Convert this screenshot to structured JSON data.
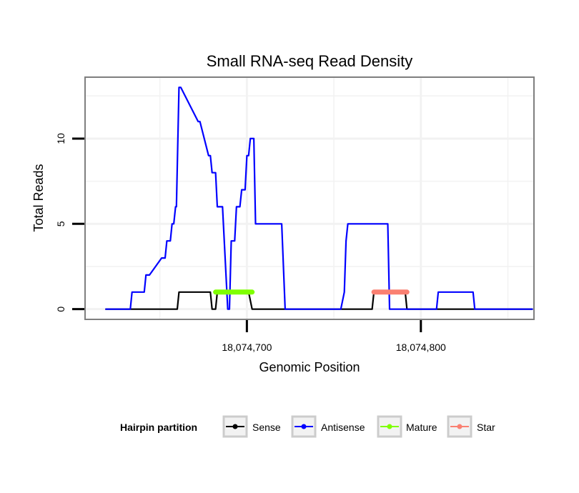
{
  "chart_data": {
    "type": "line",
    "title": "Small RNA-seq Read Density",
    "xlabel": "Genomic Position",
    "ylabel": "Total Reads",
    "xlim": [
      18074607,
      18074865
    ],
    "ylim": [
      -0.6,
      13.6
    ],
    "x_ticks": [
      {
        "value": 18074700,
        "label": "18,074,700"
      },
      {
        "value": 18074800,
        "label": "18,074,800"
      }
    ],
    "y_ticks": [
      {
        "value": 0,
        "label": "0"
      },
      {
        "value": 5,
        "label": "5"
      },
      {
        "value": 10,
        "label": "10"
      }
    ],
    "x_minor_grid": [
      18074650,
      18074750,
      18074850
    ],
    "y_minor_grid": [
      2.5,
      7.5,
      12.5
    ],
    "legend": {
      "title": "Hairpin partition",
      "position": "bottom",
      "entries": [
        {
          "label": "Sense",
          "color": "#000000"
        },
        {
          "label": "Antisense",
          "color": "#0000ff"
        },
        {
          "label": "Mature",
          "color": "#7fff00"
        },
        {
          "label": "Star",
          "color": "#fa8072"
        }
      ]
    },
    "series": [
      {
        "name": "Sense",
        "color": "#000000",
        "x": [
          18074619,
          18074660,
          18074661,
          18074679,
          18074680,
          18074682,
          18074683,
          18074701,
          18074703,
          18074754,
          18074772,
          18074773,
          18074791,
          18074792,
          18074864
        ],
        "y": [
          0,
          0,
          1,
          1,
          0,
          0,
          1,
          1,
          0,
          0,
          0,
          1,
          1,
          0,
          0
        ]
      },
      {
        "name": "Antisense",
        "color": "#0000ff",
        "x": [
          18074619,
          18074633,
          18074634,
          18074637,
          18074638,
          18074641,
          18074642,
          18074643,
          18074644,
          18074651,
          18074652,
          18074653,
          18074654,
          18074654.5,
          18074656,
          18074657,
          18074658,
          18074659,
          18074659.5,
          18074661,
          18074662,
          18074672,
          18074673,
          18074678,
          18074679,
          18074680,
          18074682,
          18074683,
          18074686,
          18074689,
          18074690,
          18074691,
          18074693,
          18074694,
          18074696,
          18074697,
          18074699,
          18074700,
          18074701,
          18074702,
          18074704,
          18074705,
          18074720,
          18074722,
          18074723,
          18074754,
          18074756,
          18074757,
          18074758,
          18074781,
          18074782,
          18074784,
          18074785,
          18074809,
          18074810,
          18074830,
          18074831,
          18074864
        ],
        "y": [
          0,
          0,
          1,
          1,
          1,
          1,
          2,
          2,
          2,
          3,
          3,
          3,
          4,
          4,
          4,
          5,
          5,
          6,
          6,
          13,
          13,
          11,
          11,
          9,
          9,
          8,
          8,
          6,
          6,
          0,
          0,
          4,
          4,
          6,
          6,
          7,
          7,
          9,
          9,
          10,
          10,
          5,
          5,
          0,
          0,
          0,
          1,
          4,
          5,
          5,
          0,
          0,
          0,
          0,
          1,
          1,
          0,
          0
        ]
      },
      {
        "name": "Mature",
        "color": "#7fff00",
        "x": [
          18074682,
          18074703
        ],
        "y": [
          1,
          1
        ]
      },
      {
        "name": "Star",
        "color": "#fa8072",
        "x": [
          18074773,
          18074792
        ],
        "y": [
          1,
          1
        ]
      }
    ]
  }
}
